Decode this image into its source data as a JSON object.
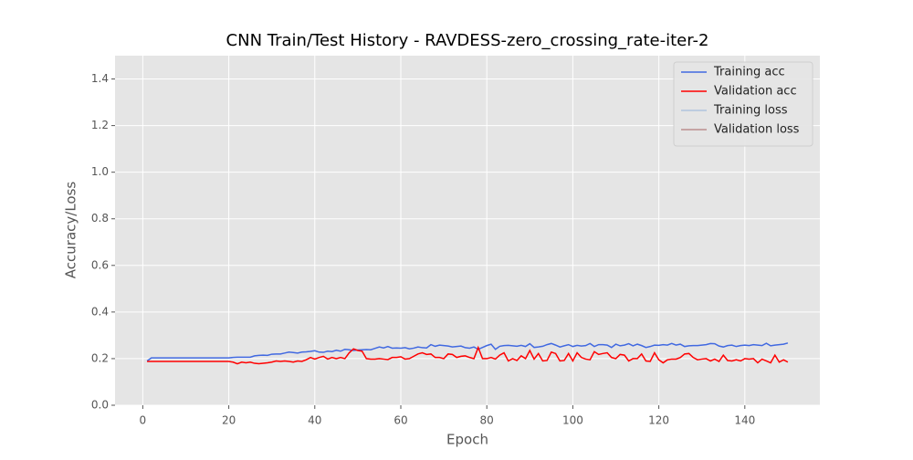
{
  "chart_data": {
    "type": "line",
    "title": "CNN Train/Test History -  RAVDESS-zero_crossing_rate-iter-2",
    "xlabel": "Epoch",
    "ylabel": "Accuracy/Loss",
    "x": [
      1,
      2,
      3,
      4,
      5,
      6,
      7,
      8,
      9,
      10,
      11,
      12,
      13,
      14,
      15,
      16,
      17,
      18,
      19,
      20,
      21,
      22,
      23,
      24,
      25,
      26,
      27,
      28,
      29,
      30,
      31,
      32,
      33,
      34,
      35,
      36,
      37,
      38,
      39,
      40,
      41,
      42,
      43,
      44,
      45,
      46,
      47,
      48,
      49,
      50,
      51,
      52,
      53,
      54,
      55,
      56,
      57,
      58,
      59,
      60,
      61,
      62,
      63,
      64,
      65,
      66,
      67,
      68,
      69,
      70,
      71,
      72,
      73,
      74,
      75,
      76,
      77,
      78,
      79,
      80,
      81,
      82,
      83,
      84,
      85,
      86,
      87,
      88,
      89,
      90,
      91,
      92,
      93,
      94,
      95,
      96,
      97,
      98,
      99,
      100,
      101,
      102,
      103,
      104,
      105,
      106,
      107,
      108,
      109,
      110,
      111,
      112,
      113,
      114,
      115,
      116,
      117,
      118,
      119,
      120,
      121,
      122,
      123,
      124,
      125,
      126,
      127,
      128,
      129,
      130,
      131,
      132,
      133,
      134,
      135,
      136,
      137,
      138,
      139,
      140,
      141,
      142,
      143,
      144,
      145,
      146,
      147,
      148,
      149,
      150
    ],
    "series": [
      {
        "name": "Training acc",
        "color": "#4169e1",
        "values": [
          0.19,
          0.203,
          0.203,
          0.203,
          0.203,
          0.203,
          0.203,
          0.203,
          0.203,
          0.203,
          0.203,
          0.203,
          0.203,
          0.203,
          0.203,
          0.203,
          0.203,
          0.203,
          0.203,
          0.203,
          0.205,
          0.206,
          0.206,
          0.206,
          0.206,
          0.212,
          0.214,
          0.215,
          0.214,
          0.219,
          0.22,
          0.22,
          0.224,
          0.228,
          0.226,
          0.224,
          0.228,
          0.229,
          0.231,
          0.234,
          0.228,
          0.227,
          0.232,
          0.23,
          0.236,
          0.232,
          0.24,
          0.238,
          0.235,
          0.237,
          0.238,
          0.239,
          0.238,
          0.244,
          0.25,
          0.246,
          0.252,
          0.245,
          0.246,
          0.245,
          0.247,
          0.242,
          0.245,
          0.25,
          0.247,
          0.246,
          0.26,
          0.253,
          0.258,
          0.256,
          0.254,
          0.25,
          0.252,
          0.254,
          0.247,
          0.245,
          0.25,
          0.24,
          0.248,
          0.256,
          0.262,
          0.24,
          0.253,
          0.256,
          0.257,
          0.255,
          0.253,
          0.257,
          0.252,
          0.264,
          0.248,
          0.25,
          0.253,
          0.26,
          0.265,
          0.258,
          0.25,
          0.255,
          0.26,
          0.252,
          0.257,
          0.254,
          0.256,
          0.265,
          0.252,
          0.26,
          0.26,
          0.258,
          0.248,
          0.262,
          0.255,
          0.258,
          0.264,
          0.255,
          0.262,
          0.256,
          0.248,
          0.252,
          0.258,
          0.257,
          0.26,
          0.258,
          0.265,
          0.258,
          0.262,
          0.252,
          0.255,
          0.256,
          0.256,
          0.258,
          0.26,
          0.265,
          0.264,
          0.254,
          0.25,
          0.256,
          0.258,
          0.252,
          0.256,
          0.258,
          0.256,
          0.26,
          0.258,
          0.256,
          0.266,
          0.255,
          0.258,
          0.26,
          0.262,
          0.267
        ]
      },
      {
        "name": "Validation acc",
        "color": "#ff0000",
        "values": [
          0.188,
          0.188,
          0.188,
          0.188,
          0.188,
          0.188,
          0.188,
          0.188,
          0.188,
          0.188,
          0.188,
          0.188,
          0.188,
          0.188,
          0.188,
          0.188,
          0.188,
          0.188,
          0.188,
          0.188,
          0.185,
          0.178,
          0.185,
          0.182,
          0.185,
          0.18,
          0.178,
          0.18,
          0.182,
          0.185,
          0.19,
          0.188,
          0.19,
          0.188,
          0.185,
          0.19,
          0.188,
          0.195,
          0.205,
          0.198,
          0.205,
          0.21,
          0.198,
          0.205,
          0.2,
          0.205,
          0.2,
          0.225,
          0.242,
          0.235,
          0.232,
          0.2,
          0.198,
          0.198,
          0.2,
          0.198,
          0.196,
          0.205,
          0.205,
          0.208,
          0.198,
          0.2,
          0.21,
          0.22,
          0.225,
          0.218,
          0.22,
          0.205,
          0.205,
          0.2,
          0.22,
          0.218,
          0.205,
          0.21,
          0.212,
          0.205,
          0.2,
          0.248,
          0.2,
          0.2,
          0.205,
          0.198,
          0.215,
          0.225,
          0.19,
          0.2,
          0.192,
          0.212,
          0.2,
          0.235,
          0.198,
          0.222,
          0.19,
          0.192,
          0.228,
          0.222,
          0.19,
          0.192,
          0.222,
          0.19,
          0.225,
          0.205,
          0.198,
          0.195,
          0.23,
          0.218,
          0.222,
          0.225,
          0.205,
          0.2,
          0.218,
          0.215,
          0.19,
          0.2,
          0.2,
          0.22,
          0.19,
          0.188,
          0.225,
          0.195,
          0.182,
          0.195,
          0.198,
          0.198,
          0.205,
          0.22,
          0.222,
          0.205,
          0.195,
          0.198,
          0.2,
          0.19,
          0.198,
          0.188,
          0.215,
          0.192,
          0.19,
          0.195,
          0.19,
          0.2,
          0.198,
          0.2,
          0.182,
          0.198,
          0.19,
          0.182,
          0.215,
          0.185,
          0.195,
          0.185
        ]
      },
      {
        "name": "Training loss",
        "color": "#b0c4de",
        "values": [
          null,
          null,
          null,
          null,
          null,
          null,
          null,
          null,
          null,
          null,
          null,
          null,
          null,
          null,
          null,
          null,
          null,
          null,
          null,
          null,
          null,
          null,
          null,
          null,
          null,
          null,
          null,
          null,
          null,
          null,
          null,
          null,
          null,
          null,
          null,
          null,
          null,
          null,
          null,
          null,
          null,
          null,
          null,
          null,
          null,
          null,
          null,
          null,
          null,
          null,
          null,
          null,
          null,
          null,
          null,
          null,
          null,
          null,
          null,
          null,
          null,
          null,
          null,
          null,
          null,
          null,
          null,
          null,
          null,
          null,
          null,
          null,
          null,
          null,
          null,
          null,
          null,
          null,
          null,
          null,
          null,
          null,
          null,
          null,
          null,
          null,
          null,
          null,
          null,
          null,
          null,
          null,
          null,
          null,
          null,
          null,
          null,
          null,
          null,
          null,
          null,
          null,
          null,
          null,
          null,
          null,
          null,
          null,
          null,
          null,
          null,
          null,
          null,
          null,
          null,
          null,
          null,
          null,
          null,
          null,
          null,
          null,
          null,
          null,
          null,
          null,
          null,
          null,
          null,
          null,
          null,
          null,
          null,
          null,
          null,
          null,
          null,
          null,
          null,
          null,
          null,
          null,
          null,
          null,
          null,
          null,
          null,
          null,
          null,
          null
        ]
      },
      {
        "name": "Validation loss",
        "color": "#bc8f8f",
        "values": [
          null,
          null,
          null,
          null,
          null,
          null,
          null,
          null,
          null,
          null,
          null,
          null,
          null,
          null,
          null,
          null,
          null,
          null,
          null,
          null,
          null,
          null,
          null,
          null,
          null,
          null,
          null,
          null,
          null,
          null,
          null,
          null,
          null,
          null,
          null,
          null,
          null,
          null,
          null,
          null,
          null,
          null,
          null,
          null,
          null,
          null,
          null,
          null,
          null,
          null,
          null,
          null,
          null,
          null,
          null,
          null,
          null,
          null,
          null,
          null,
          null,
          null,
          null,
          null,
          null,
          null,
          null,
          null,
          null,
          null,
          null,
          null,
          null,
          null,
          null,
          null,
          null,
          null,
          null,
          null,
          null,
          null,
          null,
          null,
          null,
          null,
          null,
          null,
          null,
          null,
          null,
          null,
          null,
          null,
          null,
          null,
          null,
          null,
          null,
          null,
          null,
          null,
          null,
          null,
          null,
          null,
          null,
          null,
          null,
          null,
          null,
          null,
          null,
          null,
          null,
          null,
          null,
          null,
          null,
          null,
          null,
          null,
          null,
          null,
          null,
          null,
          null,
          null,
          null,
          null,
          null,
          null,
          null,
          null,
          null,
          null,
          null,
          null,
          null,
          null,
          null,
          null,
          null,
          null,
          null,
          null,
          null,
          null,
          null,
          null
        ]
      }
    ],
    "xlim": [
      -6.45,
      157.45
    ],
    "xticks": [
      0,
      20,
      40,
      60,
      80,
      100,
      120,
      140
    ],
    "ylim": [
      0,
      1.5
    ],
    "yticks": [
      {
        "value": 0,
        "label": "0.0"
      },
      0.2,
      0.4,
      0.6,
      0.8,
      {
        "value": 1,
        "label": "1.0"
      },
      1.2,
      1.4
    ],
    "grid": true,
    "legend": "upper right"
  }
}
